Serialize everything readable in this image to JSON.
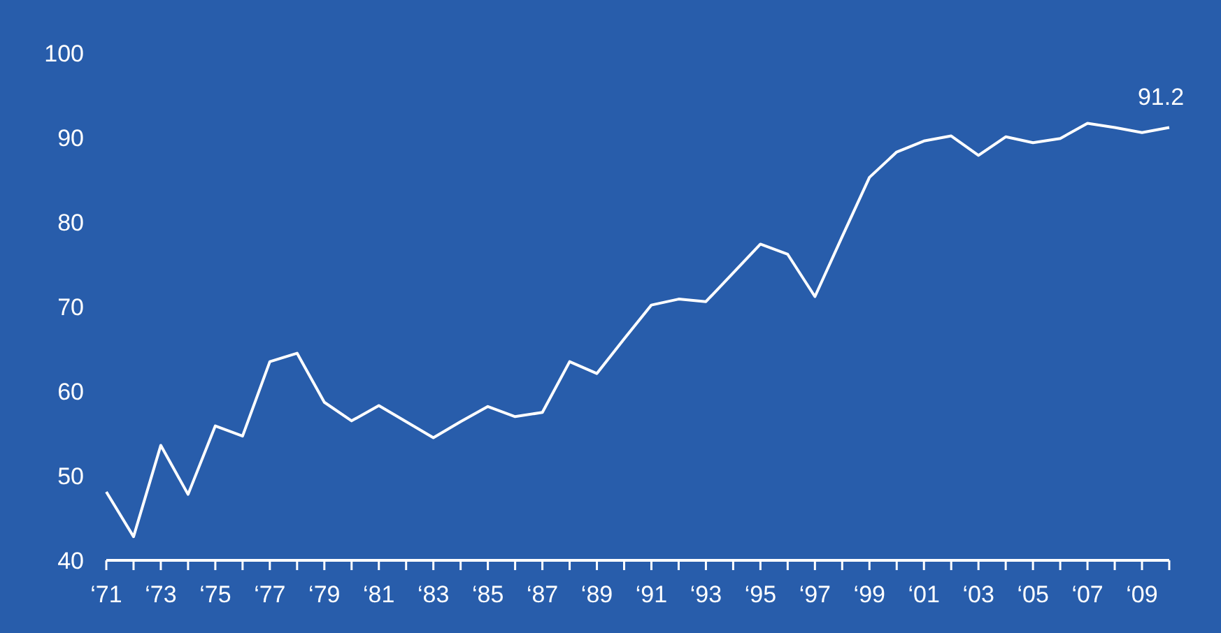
{
  "chart_data": {
    "type": "line",
    "categories": [
      "‘71",
      null,
      "‘73",
      null,
      "‘75",
      null,
      "‘77",
      null,
      "‘79",
      null,
      "‘81",
      null,
      "‘83",
      null,
      "‘85",
      null,
      "‘87",
      null,
      "‘89",
      null,
      "‘91",
      null,
      "‘93",
      null,
      "‘95",
      null,
      "‘97",
      null,
      "‘99",
      null,
      "‘01",
      null,
      "‘03",
      null,
      "‘05",
      null,
      "‘07",
      null,
      "‘09",
      null
    ],
    "series": [
      {
        "color": "#ffffff",
        "values": [
          48.1,
          42.8,
          53.6,
          47.8,
          55.9,
          54.7,
          63.5,
          64.5,
          58.7,
          56.5,
          58.3,
          56.4,
          54.5,
          56.4,
          58.2,
          57.0,
          57.5,
          63.5,
          62.1,
          66.2,
          70.2,
          70.9,
          70.6,
          74.0,
          77.4,
          76.2,
          71.2,
          78.3,
          85.3,
          88.3,
          89.6,
          90.2,
          87.9,
          90.1,
          89.4,
          89.9,
          91.7,
          91.2,
          90.6,
          91.2
        ]
      }
    ],
    "ylim": [
      40,
      100
    ],
    "yticks": [
      40,
      50,
      60,
      70,
      80,
      90,
      100
    ],
    "grid": false,
    "annotations": [
      {
        "text": "91.2",
        "y": 91.2
      }
    ]
  }
}
